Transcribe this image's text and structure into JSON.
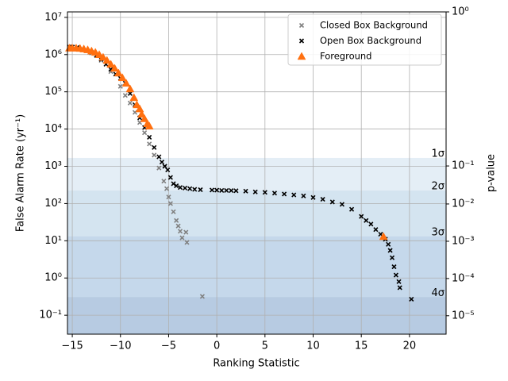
{
  "chart_data": {
    "type": "scatter",
    "x_label": "Ranking Statistic",
    "y_label": "False Alarm Rate (yr⁻¹)",
    "y2_label": "p-value",
    "xlim": [
      -15.5,
      23.8
    ],
    "xticks": [
      {
        "value": -15,
        "label": "−15"
      },
      {
        "value": -10,
        "label": "−10"
      },
      {
        "value": -5,
        "label": "−5"
      },
      0,
      5,
      10,
      15,
      20
    ],
    "ylim": [
      0.031,
      14000000
    ],
    "yscale": "log",
    "yticks": [
      {
        "value": 0.1,
        "label": "10⁻¹"
      },
      {
        "value": 1,
        "label": "10⁰"
      },
      {
        "value": 10,
        "label": "10¹"
      },
      {
        "value": 100,
        "label": "10²"
      },
      {
        "value": 1000,
        "label": "10³"
      },
      {
        "value": 10000,
        "label": "10⁴"
      },
      {
        "value": 100000,
        "label": "10⁵"
      },
      {
        "value": 1000000,
        "label": "10⁶"
      },
      {
        "value": 10000000,
        "label": "10⁷"
      }
    ],
    "y2lim": [
      3.2e-06,
      1
    ],
    "y2ticks": [
      {
        "value": 1e-05,
        "label": "10⁻⁵"
      },
      {
        "value": 0.0001,
        "label": "10⁻⁴"
      },
      {
        "value": 0.001,
        "label": "10⁻³"
      },
      {
        "value": 0.01,
        "label": "10⁻²"
      },
      {
        "value": 0.1,
        "label": "10⁻¹"
      },
      {
        "value": 1,
        "label": "10⁰"
      }
    ],
    "grid": true,
    "legend": "upper right",
    "bands": [
      {
        "label": "1σ",
        "far": 1677,
        "color": "#e4eef6"
      },
      {
        "label": "2σ",
        "far": 223,
        "color": "#d4e4f0"
      },
      {
        "label": "3σ",
        "far": 13.1,
        "color": "#c5d8eb"
      },
      {
        "label": "4σ",
        "far": 0.307,
        "color": "#b7cbe2"
      }
    ],
    "series": [
      {
        "name": "Closed Box Background",
        "color": "#808080",
        "marker": "x",
        "x": [
          -15,
          -14,
          -13,
          -12,
          -11,
          -10,
          -9.5,
          -9,
          -8.5,
          -8,
          -7.5,
          -7,
          -6.5,
          -6,
          -5.5,
          -5.2,
          -5,
          -4.8,
          -4.5,
          -4.2,
          -4,
          -3.8,
          -3.6,
          -3.2,
          -3.1,
          -1.5
        ],
        "values": [
          1600000,
          1400000,
          1100000,
          700000,
          350000,
          140000,
          80000,
          50000,
          28000,
          15000,
          8000,
          4000,
          2000,
          900,
          400,
          250,
          150,
          100,
          60,
          35,
          25,
          18,
          12,
          17,
          9,
          0.32
        ]
      },
      {
        "name": "Open Box Background",
        "color": "#000000",
        "marker": "x",
        "x": [
          -15.3,
          -15,
          -14.5,
          -14,
          -13.5,
          -13,
          -12.5,
          -12,
          -11.5,
          -11,
          -10.5,
          -10,
          -9.5,
          -9,
          -8.5,
          -8,
          -7.5,
          -7,
          -6.5,
          -6,
          -5.7,
          -5.4,
          -5.1,
          -4.8,
          -4.5,
          -4.2,
          -3.8,
          -3.3,
          -2.8,
          -2.3,
          -1.7,
          -0.5,
          0,
          0.5,
          1,
          1.5,
          2,
          3,
          4,
          5,
          6,
          7,
          8,
          9,
          10,
          11,
          12,
          13,
          14,
          15,
          15.5,
          16,
          16.5,
          17,
          17.5,
          17.8,
          18,
          18.2,
          18.4,
          18.6,
          18.9,
          19,
          20.2
        ],
        "values": [
          1600000,
          1600000,
          1550000,
          1450000,
          1300000,
          1150000,
          950000,
          750000,
          550000,
          400000,
          300000,
          230000,
          170000,
          90000,
          45000,
          20000,
          11000,
          6000,
          3200,
          1800,
          1300,
          1000,
          800,
          500,
          340,
          300,
          270,
          260,
          250,
          240,
          235,
          230,
          228,
          225,
          225,
          223,
          220,
          215,
          205,
          200,
          190,
          180,
          170,
          160,
          145,
          130,
          110,
          95,
          70,
          45,
          35,
          28,
          20,
          15,
          11,
          8,
          5.5,
          3.5,
          2,
          1.2,
          0.8,
          0.55,
          0.27
        ]
      },
      {
        "name": "Foreground",
        "color": "#ff7010",
        "marker": "triangle",
        "x": [
          -15.3,
          -15,
          -14.6,
          -14.2,
          -13.8,
          -13.4,
          -13,
          -12.6,
          -12.2,
          -11.8,
          -11.4,
          -11,
          -10.6,
          -10.2,
          -9.8,
          -9.4,
          -9,
          -8.6,
          -8.3,
          -8,
          -7.8,
          -7.5,
          -7.2,
          -7,
          17.3
        ],
        "values": [
          1500000,
          1500000,
          1500000,
          1470000,
          1420000,
          1350000,
          1250000,
          1150000,
          1000000,
          850000,
          700000,
          550000,
          430000,
          320000,
          240000,
          170000,
          120000,
          70000,
          45000,
          35000,
          25000,
          19000,
          14000,
          12000,
          13
        ]
      }
    ]
  }
}
